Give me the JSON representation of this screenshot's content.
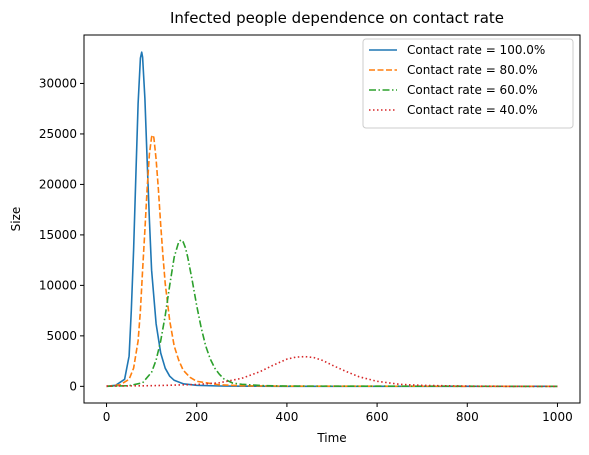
{
  "chart_data": {
    "type": "line",
    "title": "Infected people dependence on contact rate",
    "xlabel": "Time",
    "ylabel": "Size",
    "xlim": [
      -50,
      1050
    ],
    "ylim": [
      -1650,
      34800
    ],
    "xticks": [
      0,
      200,
      400,
      600,
      800,
      1000
    ],
    "yticks": [
      0,
      5000,
      10000,
      15000,
      20000,
      25000,
      30000
    ],
    "grid": false,
    "legend_position": "top-right",
    "series": [
      {
        "name": "Contact rate = 100.0%",
        "color": "#1f77b4",
        "dash": "solid",
        "x": [
          0,
          20,
          40,
          50,
          55,
          60,
          65,
          70,
          75,
          78,
          80,
          85,
          90,
          95,
          100,
          110,
          120,
          130,
          140,
          150,
          170,
          200,
          250,
          300,
          400,
          1000
        ],
        "y": [
          0,
          100,
          700,
          3000,
          7500,
          13500,
          21000,
          28000,
          32500,
          33100,
          32600,
          28500,
          22500,
          16500,
          11500,
          6200,
          3300,
          1800,
          1000,
          600,
          250,
          100,
          30,
          10,
          0,
          0
        ]
      },
      {
        "name": "Contact rate = 80.0%",
        "color": "#ff7f0e",
        "dash": "dashed",
        "x": [
          0,
          30,
          50,
          60,
          70,
          75,
          80,
          85,
          90,
          95,
          100,
          103,
          105,
          110,
          115,
          120,
          125,
          130,
          140,
          150,
          160,
          170,
          185,
          200,
          250,
          300,
          400,
          1000
        ],
        "y": [
          0,
          150,
          700,
          1800,
          4500,
          7500,
          11500,
          15500,
          19500,
          23000,
          24700,
          24900,
          24600,
          22500,
          19500,
          16000,
          13000,
          10200,
          6500,
          4000,
          2600,
          1600,
          900,
          500,
          150,
          50,
          10,
          0
        ]
      },
      {
        "name": "Contact rate = 60.0%",
        "color": "#2ca02c",
        "dash": "dashdot",
        "x": [
          0,
          50,
          80,
          100,
          110,
          120,
          130,
          140,
          150,
          160,
          165,
          170,
          175,
          180,
          190,
          200,
          210,
          220,
          230,
          240,
          250,
          260,
          280,
          300,
          350,
          400,
          1000
        ],
        "y": [
          0,
          60,
          350,
          1400,
          2600,
          4500,
          7000,
          10000,
          12800,
          14300,
          14500,
          14300,
          13700,
          12800,
          10500,
          8000,
          5800,
          4000,
          2700,
          1800,
          1200,
          750,
          320,
          200,
          60,
          20,
          0
        ]
      },
      {
        "name": "Contact rate = 40.0%",
        "color": "#d62728",
        "dash": "dotted",
        "x": [
          0,
          100,
          200,
          250,
          300,
          340,
          370,
          400,
          420,
          440,
          460,
          480,
          500,
          530,
          560,
          600,
          650,
          700,
          800,
          900,
          1000
        ],
        "y": [
          20,
          60,
          180,
          350,
          800,
          1450,
          2100,
          2700,
          2900,
          2950,
          2850,
          2550,
          2100,
          1500,
          950,
          500,
          200,
          90,
          20,
          5,
          0
        ]
      }
    ]
  }
}
